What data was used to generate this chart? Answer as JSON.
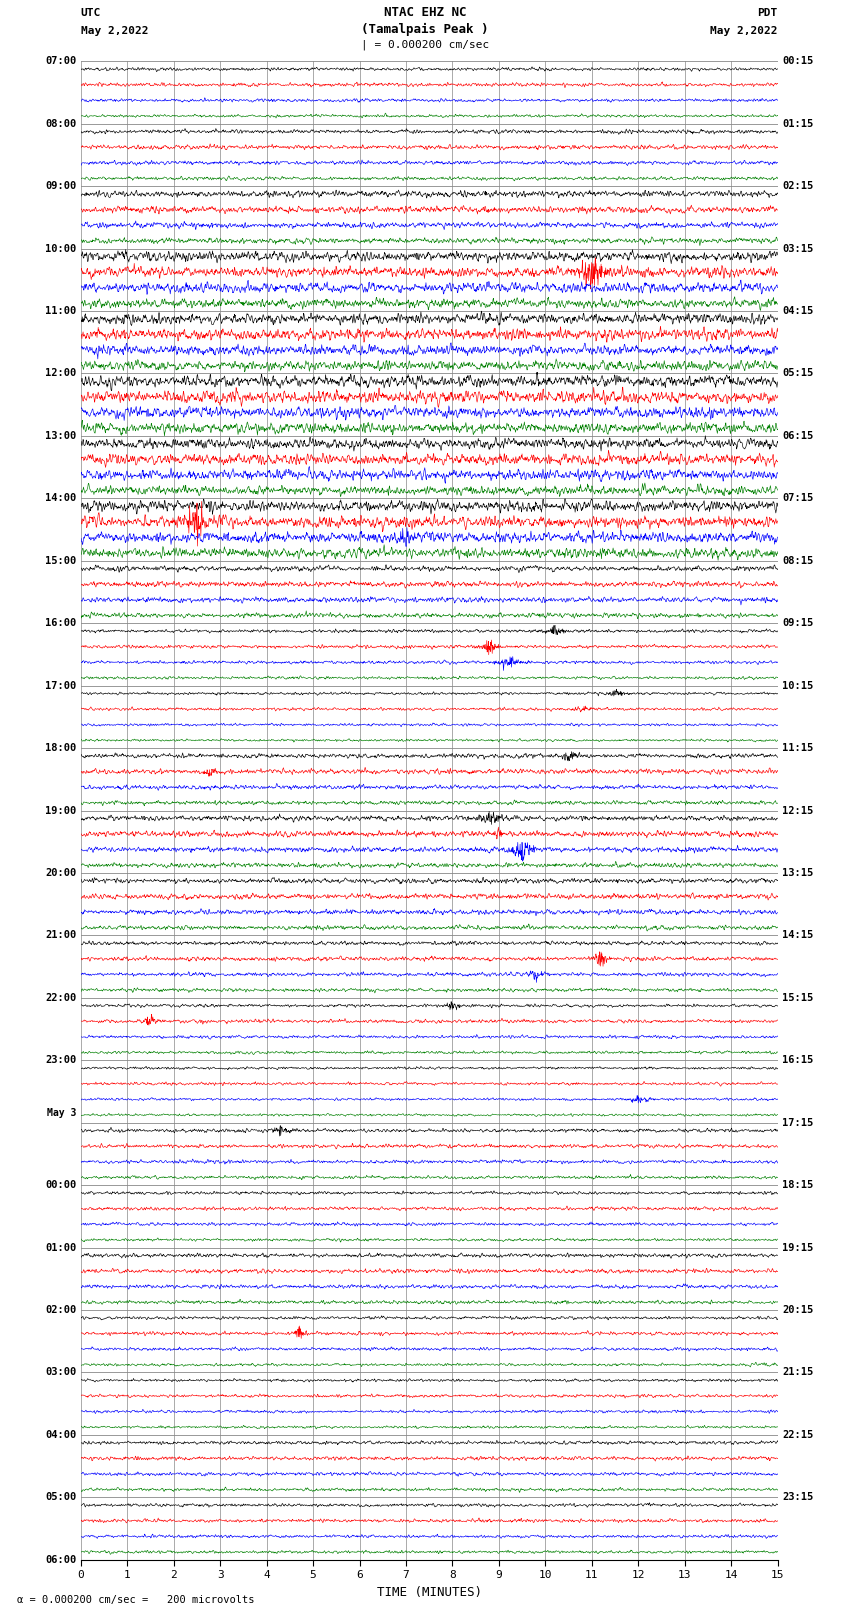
{
  "title_line1": "NTAC EHZ NC",
  "title_line2": "(Tamalpais Peak )",
  "scale_label": "| = 0.000200 cm/sec",
  "left_header": "UTC",
  "left_date": "May 2,2022",
  "right_header": "PDT",
  "right_date": "May 2,2022",
  "xlabel": "TIME (MINUTES)",
  "bottom_note": "= 0.000200 cm/sec =   200 microvolts",
  "trace_colors": [
    "black",
    "red",
    "blue",
    "green"
  ],
  "bg_color": "white",
  "text_color": "black",
  "grid_color": "#888888",
  "x_min": 0,
  "x_max": 15,
  "x_ticks": [
    0,
    1,
    2,
    3,
    4,
    5,
    6,
    7,
    8,
    9,
    10,
    11,
    12,
    13,
    14,
    15
  ],
  "left_labels_utc": [
    "07:00",
    "08:00",
    "09:00",
    "10:00",
    "11:00",
    "12:00",
    "13:00",
    "14:00",
    "15:00",
    "16:00",
    "17:00",
    "18:00",
    "19:00",
    "20:00",
    "21:00",
    "22:00",
    "23:00",
    "May 3",
    "00:00",
    "01:00",
    "02:00",
    "03:00",
    "04:00",
    "05:00",
    "06:00"
  ],
  "right_labels_pdt": [
    "00:15",
    "01:15",
    "02:15",
    "03:15",
    "04:15",
    "05:15",
    "06:15",
    "07:15",
    "08:15",
    "09:15",
    "10:15",
    "11:15",
    "12:15",
    "13:15",
    "14:15",
    "15:15",
    "16:15",
    "17:15",
    "18:15",
    "19:15",
    "20:15",
    "21:15",
    "22:15",
    "23:15"
  ],
  "num_hours": 24,
  "traces_per_hour": 4,
  "n_samples": 1800,
  "dpi": 100,
  "fig_width": 8.5,
  "fig_height": 16.13,
  "amplitude_by_hour": [
    0.18,
    0.22,
    0.35,
    0.55,
    0.6,
    0.65,
    0.58,
    0.62,
    0.3,
    0.18,
    0.15,
    0.25,
    0.3,
    0.28,
    0.22,
    0.18,
    0.15,
    0.2,
    0.18,
    0.22,
    0.18,
    0.16,
    0.2,
    0.18
  ],
  "color_amp_scale": [
    1.0,
    1.1,
    1.0,
    0.9
  ],
  "event_spikes": [
    {
      "hour": 9,
      "color": 1,
      "time": 8.8,
      "amp": 4.0
    },
    {
      "hour": 9,
      "color": 2,
      "time": 9.2,
      "amp": 3.5
    },
    {
      "hour": 9,
      "color": 0,
      "time": 10.2,
      "amp": 2.5
    },
    {
      "hour": 10,
      "color": 0,
      "time": 11.5,
      "amp": 2.0
    },
    {
      "hour": 10,
      "color": 1,
      "time": 10.8,
      "amp": 2.5
    },
    {
      "hour": 12,
      "color": 1,
      "time": 9.0,
      "amp": 3.0
    },
    {
      "hour": 12,
      "color": 2,
      "time": 9.5,
      "amp": 3.5
    },
    {
      "hour": 12,
      "color": 0,
      "time": 8.8,
      "amp": 2.0
    },
    {
      "hour": 14,
      "color": 1,
      "time": 11.2,
      "amp": 4.5
    },
    {
      "hour": 14,
      "color": 2,
      "time": 9.8,
      "amp": 2.0
    },
    {
      "hour": 7,
      "color": 1,
      "time": 2.5,
      "amp": 2.5
    },
    {
      "hour": 7,
      "color": 2,
      "time": 7.0,
      "amp": 2.2
    },
    {
      "hour": 11,
      "color": 0,
      "time": 10.5,
      "amp": 2.0
    },
    {
      "hour": 11,
      "color": 1,
      "time": 2.8,
      "amp": 2.2
    },
    {
      "hour": 3,
      "color": 1,
      "time": 11.0,
      "amp": 2.5
    },
    {
      "hour": 17,
      "color": 0,
      "time": 4.3,
      "amp": 2.0
    },
    {
      "hour": 20,
      "color": 1,
      "time": 4.7,
      "amp": 3.0
    },
    {
      "hour": 15,
      "color": 1,
      "time": 1.5,
      "amp": 2.5
    },
    {
      "hour": 15,
      "color": 0,
      "time": 8.0,
      "amp": 2.0
    },
    {
      "hour": 16,
      "color": 2,
      "time": 12.0,
      "amp": 2.2
    }
  ]
}
